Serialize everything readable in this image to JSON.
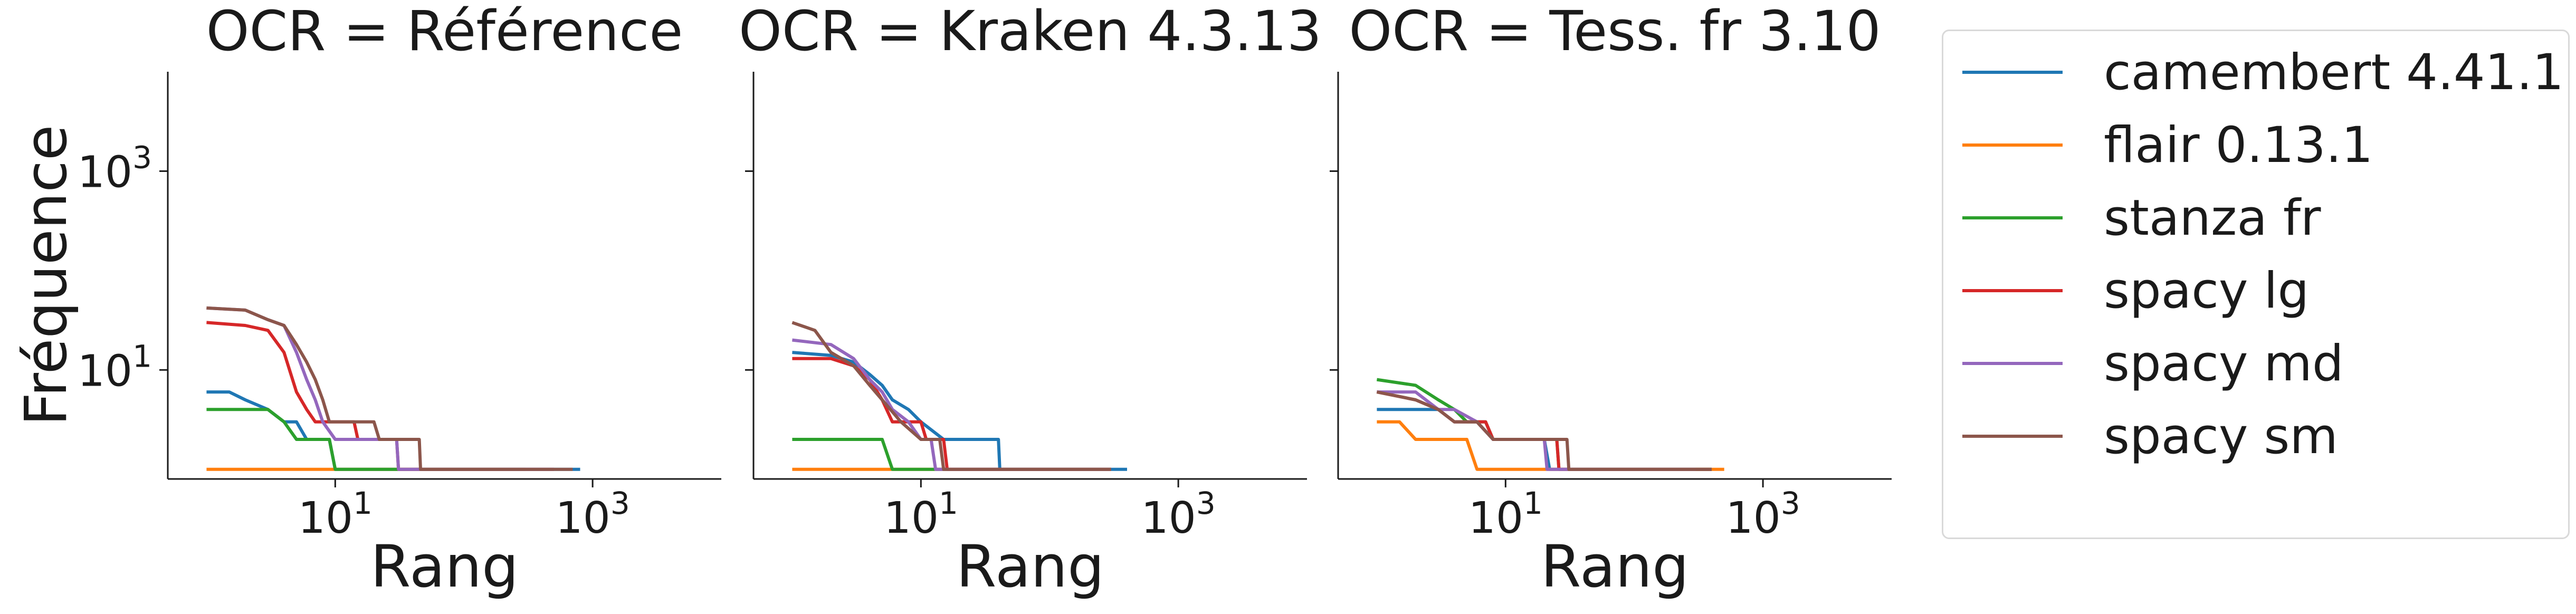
{
  "chart_data": {
    "type": "line",
    "xscale": "log",
    "yscale": "log",
    "xlim": [
      0.5,
      10000
    ],
    "ylim": [
      0.8,
      10000
    ],
    "xticks": [
      10,
      1000
    ],
    "xtick_labels": [
      {
        "base": "10",
        "exp": "1"
      },
      {
        "base": "10",
        "exp": "3"
      }
    ],
    "yticks": [
      10,
      1000
    ],
    "ytick_labels": [
      {
        "base": "10",
        "exp": "1"
      },
      {
        "base": "10",
        "exp": "3"
      }
    ],
    "xlabel": "Rang",
    "ylabel": "Fréquence",
    "grid": false,
    "legend_position": "right",
    "series_colors": [
      "#1f77b4",
      "#ff7f0e",
      "#2ca02c",
      "#d62728",
      "#9467bd",
      "#8c564b"
    ],
    "panels": [
      {
        "title": "OCR = Référence",
        "series": [
          {
            "name": "camembert 4.41.1",
            "points": [
              [
                1,
                6
              ],
              [
                1.5,
                6
              ],
              [
                2,
                5
              ],
              [
                3,
                4
              ],
              [
                4,
                3
              ],
              [
                5,
                3
              ],
              [
                6,
                2
              ],
              [
                8,
                2
              ],
              [
                9,
                2
              ],
              [
                10,
                1
              ],
              [
                800,
                1
              ]
            ]
          },
          {
            "name": "flair 0.13.1",
            "points": [
              [
                1,
                1
              ],
              [
                200,
                1
              ]
            ]
          },
          {
            "name": "stanza fr",
            "points": [
              [
                1,
                4
              ],
              [
                2,
                4
              ],
              [
                3,
                4
              ],
              [
                4,
                3
              ],
              [
                5,
                2
              ],
              [
                8,
                2
              ],
              [
                9,
                2
              ],
              [
                10,
                1
              ],
              [
                300,
                1
              ]
            ]
          },
          {
            "name": "spacy lg",
            "points": [
              [
                1,
                30
              ],
              [
                2,
                28
              ],
              [
                3,
                25
              ],
              [
                4,
                15
              ],
              [
                5,
                6
              ],
              [
                6,
                4
              ],
              [
                7,
                3
              ],
              [
                14,
                3
              ],
              [
                15,
                2
              ],
              [
                30,
                2
              ],
              [
                31,
                1
              ],
              [
                500,
                1
              ]
            ]
          },
          {
            "name": "spacy md",
            "points": [
              [
                1,
                42
              ],
              [
                2,
                40
              ],
              [
                3,
                32
              ],
              [
                4,
                28
              ],
              [
                5,
                15
              ],
              [
                6,
                8
              ],
              [
                7,
                5
              ],
              [
                8,
                3
              ],
              [
                10,
                2
              ],
              [
                20,
                2
              ],
              [
                30,
                2
              ],
              [
                31,
                1
              ],
              [
                500,
                1
              ]
            ]
          },
          {
            "name": "spacy sm",
            "points": [
              [
                1,
                42
              ],
              [
                2,
                40
              ],
              [
                3,
                32
              ],
              [
                4,
                28
              ],
              [
                5,
                18
              ],
              [
                6,
                12
              ],
              [
                7,
                8
              ],
              [
                8,
                5
              ],
              [
                9,
                3
              ],
              [
                20,
                3
              ],
              [
                22,
                2
              ],
              [
                45,
                2
              ],
              [
                46,
                1
              ],
              [
                700,
                1
              ]
            ]
          }
        ]
      },
      {
        "title": "OCR = Kraken 4.3.13",
        "series": [
          {
            "name": "camembert 4.41.1",
            "points": [
              [
                1,
                15
              ],
              [
                2,
                14
              ],
              [
                3,
                12
              ],
              [
                4,
                9
              ],
              [
                5,
                7
              ],
              [
                6,
                5
              ],
              [
                8,
                4
              ],
              [
                10,
                3
              ],
              [
                15,
                2
              ],
              [
                40,
                2
              ],
              [
                41,
                1
              ],
              [
                400,
                1
              ]
            ]
          },
          {
            "name": "flair 0.13.1",
            "points": [
              [
                1,
                1
              ],
              [
                300,
                1
              ]
            ]
          },
          {
            "name": "stanza fr",
            "points": [
              [
                1,
                2
              ],
              [
                5,
                2
              ],
              [
                6,
                1
              ],
              [
                300,
                1
              ]
            ]
          },
          {
            "name": "spacy lg",
            "points": [
              [
                1,
                13
              ],
              [
                2,
                13
              ],
              [
                3,
                11
              ],
              [
                4,
                8
              ],
              [
                5,
                5
              ],
              [
                6,
                3
              ],
              [
                10,
                3
              ],
              [
                11,
                2
              ],
              [
                15,
                2
              ],
              [
                16,
                1
              ],
              [
                300,
                1
              ]
            ]
          },
          {
            "name": "spacy md",
            "points": [
              [
                1,
                20
              ],
              [
                2,
                18
              ],
              [
                3,
                13
              ],
              [
                4,
                8
              ],
              [
                5,
                6
              ],
              [
                6,
                4
              ],
              [
                8,
                3
              ],
              [
                10,
                2
              ],
              [
                12,
                2
              ],
              [
                13,
                1
              ],
              [
                300,
                1
              ]
            ]
          },
          {
            "name": "spacy sm",
            "points": [
              [
                1,
                30
              ],
              [
                1.5,
                25
              ],
              [
                2,
                15
              ],
              [
                3,
                11
              ],
              [
                4,
                7
              ],
              [
                5,
                5
              ],
              [
                7,
                3
              ],
              [
                10,
                2
              ],
              [
                14,
                2
              ],
              [
                15,
                1
              ],
              [
                300,
                1
              ]
            ]
          }
        ]
      },
      {
        "title": "OCR = Tess. fr 3.10",
        "series": [
          {
            "name": "camembert 4.41.1",
            "points": [
              [
                1,
                4
              ],
              [
                2,
                4
              ],
              [
                3,
                4
              ],
              [
                4,
                3
              ],
              [
                6,
                3
              ],
              [
                8,
                2
              ],
              [
                20,
                2
              ],
              [
                22,
                1
              ],
              [
                400,
                1
              ]
            ]
          },
          {
            "name": "flair 0.13.1",
            "points": [
              [
                1,
                3
              ],
              [
                1.5,
                3
              ],
              [
                2,
                2
              ],
              [
                3,
                2
              ],
              [
                5,
                2
              ],
              [
                6,
                1
              ],
              [
                500,
                1
              ]
            ]
          },
          {
            "name": "stanza fr",
            "points": [
              [
                1,
                8
              ],
              [
                2,
                7
              ],
              [
                3,
                5
              ],
              [
                4,
                4
              ],
              [
                5,
                3
              ],
              [
                7,
                3
              ],
              [
                8,
                2
              ],
              [
                25,
                2
              ],
              [
                26,
                1
              ],
              [
                400,
                1
              ]
            ]
          },
          {
            "name": "spacy lg",
            "points": [
              [
                1,
                6
              ],
              [
                2,
                5
              ],
              [
                3,
                4
              ],
              [
                4,
                3
              ],
              [
                7,
                3
              ],
              [
                8,
                2
              ],
              [
                25,
                2
              ],
              [
                26,
                1
              ],
              [
                400,
                1
              ]
            ]
          },
          {
            "name": "spacy md",
            "points": [
              [
                1,
                6
              ],
              [
                2,
                6
              ],
              [
                3,
                4
              ],
              [
                4,
                4
              ],
              [
                6,
                3
              ],
              [
                8,
                2
              ],
              [
                20,
                2
              ],
              [
                21,
                1
              ],
              [
                300,
                1
              ]
            ]
          },
          {
            "name": "spacy sm",
            "points": [
              [
                1,
                6
              ],
              [
                2,
                5
              ],
              [
                3,
                4
              ],
              [
                4,
                3
              ],
              [
                6,
                3
              ],
              [
                8,
                2
              ],
              [
                30,
                2
              ],
              [
                31,
                1
              ],
              [
                400,
                1
              ]
            ]
          }
        ]
      }
    ]
  }
}
